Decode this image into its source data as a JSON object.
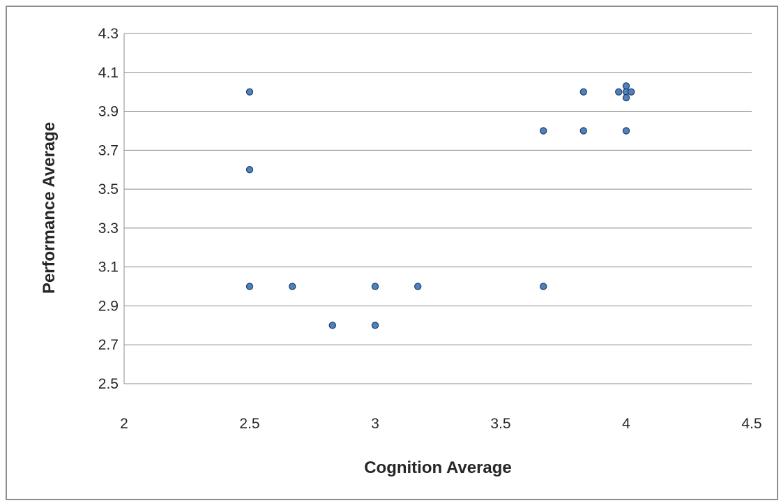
{
  "chart_data": {
    "type": "scatter",
    "title": "",
    "xlabel": "Cognition Average",
    "ylabel": "Performance Average",
    "xlim": [
      2,
      4.5
    ],
    "ylim": [
      2.5,
      4.3
    ],
    "x_ticks": [
      "2",
      "2.5",
      "3",
      "3.5",
      "4",
      "4.5"
    ],
    "y_ticks": [
      "2.5",
      "2.7",
      "2.9",
      "3.1",
      "3.3",
      "3.5",
      "3.7",
      "3.9",
      "4.1",
      "4.3"
    ],
    "grid": "horizontal",
    "legend": "none",
    "marker_color": "#4f81bd",
    "series": [
      {
        "points": [
          [
            2.5,
            4.0
          ],
          [
            2.5,
            3.6
          ],
          [
            2.5,
            3.0
          ],
          [
            2.67,
            3.0
          ],
          [
            2.83,
            2.8
          ],
          [
            3.0,
            3.0
          ],
          [
            3.0,
            2.8
          ],
          [
            3.17,
            3.0
          ],
          [
            3.67,
            3.8
          ],
          [
            3.67,
            3.0
          ],
          [
            3.83,
            4.0
          ],
          [
            3.83,
            3.8
          ],
          [
            3.97,
            4.0
          ],
          [
            4.0,
            4.03
          ],
          [
            4.0,
            4.0
          ],
          [
            4.0,
            3.97
          ],
          [
            4.02,
            4.0
          ],
          [
            4.0,
            3.8
          ]
        ]
      }
    ]
  }
}
